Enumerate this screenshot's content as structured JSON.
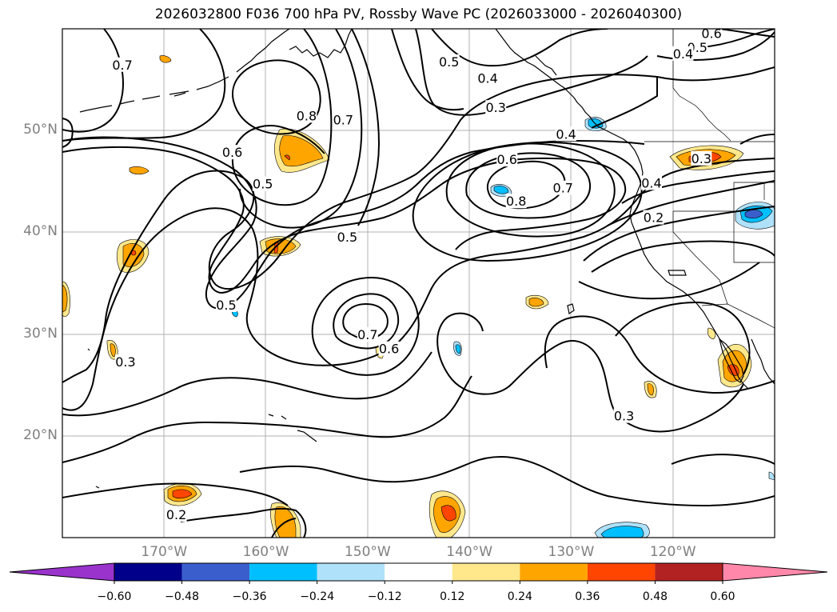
{
  "title": "2026032800 F036 700 hPa PV, Rossby Wave PC (2026033000 - 2026040300)",
  "map": {
    "lat_labels": [
      {
        "text": "50°N",
        "lat": 50
      },
      {
        "text": "40°N",
        "lat": 40
      },
      {
        "text": "30°N",
        "lat": 30
      },
      {
        "text": "20°N",
        "lat": 20
      }
    ],
    "lon_labels": [
      {
        "text": "170°W",
        "lon": -170
      },
      {
        "text": "160°W",
        "lon": -160
      },
      {
        "text": "150°W",
        "lon": -150
      },
      {
        "text": "140°W",
        "lon": -140
      },
      {
        "text": "130°W",
        "lon": -130
      },
      {
        "text": "120°W",
        "lon": -120
      }
    ],
    "contour_labels": [
      {
        "text": "0.7",
        "lon": -174.1,
        "lat": 56.4
      },
      {
        "text": "0.8",
        "lon": -156.0,
        "lat": 51.4
      },
      {
        "text": "0.7",
        "lon": -152.4,
        "lat": 51.0
      },
      {
        "text": "0.6",
        "lon": -163.3,
        "lat": 47.8
      },
      {
        "text": "0.5",
        "lon": -160.3,
        "lat": 44.7
      },
      {
        "text": "0.5",
        "lon": -142.0,
        "lat": 56.7
      },
      {
        "text": "0.4",
        "lon": -138.2,
        "lat": 55.1
      },
      {
        "text": "0.3",
        "lon": -137.4,
        "lat": 52.2
      },
      {
        "text": "0.6",
        "lon": -116.2,
        "lat": 59.5
      },
      {
        "text": "0.5",
        "lon": -117.6,
        "lat": 58.1
      },
      {
        "text": "0.4",
        "lon": -119.0,
        "lat": 57.5
      },
      {
        "text": "0.4",
        "lon": -130.5,
        "lat": 49.6
      },
      {
        "text": "0.6",
        "lon": -136.3,
        "lat": 47.1
      },
      {
        "text": "0.8",
        "lon": -135.4,
        "lat": 43.0
      },
      {
        "text": "0.7",
        "lon": -130.8,
        "lat": 44.3
      },
      {
        "text": "0.5",
        "lon": -152.0,
        "lat": 39.5
      },
      {
        "text": "0.3",
        "lon": -117.2,
        "lat": 47.2
      },
      {
        "text": "0.4",
        "lon": -122.1,
        "lat": 44.8
      },
      {
        "text": "0.2",
        "lon": -121.9,
        "lat": 41.4
      },
      {
        "text": "0.5",
        "lon": -163.9,
        "lat": 32.8
      },
      {
        "text": "0.7",
        "lon": -150.0,
        "lat": 29.9
      },
      {
        "text": "0.6",
        "lon": -147.9,
        "lat": 28.5
      },
      {
        "text": "0.3",
        "lon": -173.8,
        "lat": 27.2
      },
      {
        "text": "0.3",
        "lon": -124.8,
        "lat": 21.9
      },
      {
        "text": "0.2",
        "lon": -168.8,
        "lat": 12.2
      }
    ]
  },
  "colorbar": {
    "ticks": [
      "−0.60",
      "−0.48",
      "−0.36",
      "−0.24",
      "−0.12",
      "0.12",
      "0.24",
      "0.36",
      "0.48",
      "0.60"
    ],
    "colors": [
      "#9933cc",
      "#00008b",
      "#3a5fcd",
      "#00bfff",
      "#afe1fa",
      "#ffffff",
      "#ffe88c",
      "#ffa500",
      "#ff4500",
      "#b22222",
      "#ff88aa"
    ]
  }
}
